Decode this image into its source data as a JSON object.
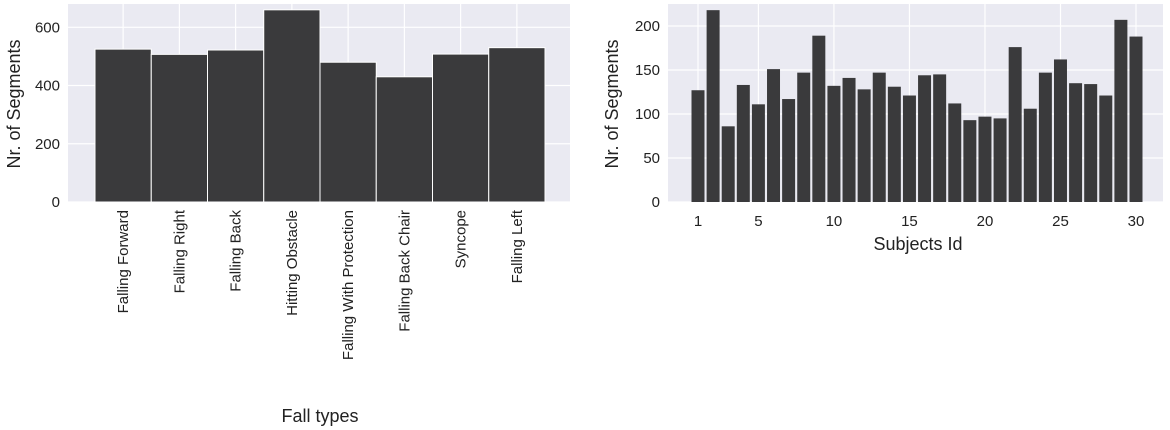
{
  "chart_data": [
    {
      "type": "bar",
      "xlabel": "Fall types",
      "ylabel": "Nr. of Segments",
      "categories": [
        "Falling Forward",
        "Falling Right",
        "Falling Back",
        "Hitting Obstacle",
        "Falling With Protection",
        "Falling Back Chair",
        "Syncope",
        "Falling Left"
      ],
      "values": [
        525,
        507,
        522,
        660,
        480,
        430,
        508,
        530
      ],
      "ylim": [
        0,
        680
      ],
      "yticks": [
        0,
        200,
        400,
        600
      ],
      "grid": true,
      "bar_color": "#3a3a3c",
      "background_color": "#eaeaf2"
    },
    {
      "type": "bar",
      "xlabel": "Subjects Id",
      "ylabel": "Nr. of Segments",
      "x": [
        1,
        2,
        3,
        4,
        5,
        6,
        7,
        8,
        9,
        10,
        11,
        12,
        13,
        14,
        15,
        16,
        17,
        18,
        19,
        20,
        21,
        22,
        23,
        24,
        25,
        26,
        27,
        28,
        29,
        30
      ],
      "values": [
        127,
        218,
        86,
        133,
        111,
        151,
        117,
        147,
        189,
        132,
        141,
        128,
        147,
        131,
        121,
        144,
        145,
        112,
        93,
        97,
        95,
        176,
        106,
        147,
        162,
        135,
        134,
        121,
        207,
        188
      ],
      "xticks": [
        1,
        5,
        10,
        15,
        20,
        25,
        30
      ],
      "yticks": [
        0,
        50,
        100,
        150,
        200
      ],
      "ylim": [
        0,
        225
      ],
      "grid": true,
      "bar_color": "#3a3a3c",
      "background_color": "#eaeaf2"
    }
  ]
}
